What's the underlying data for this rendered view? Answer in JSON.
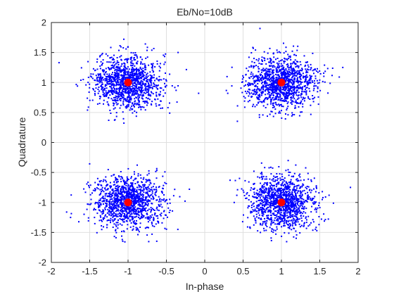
{
  "chart_data": {
    "type": "scatter",
    "title": "Eb/No=10dB",
    "xlabel": "In-phase",
    "ylabel": "Quadrature",
    "xlim": [
      -2,
      2
    ],
    "ylim": [
      -2,
      2
    ],
    "xticks": [
      -2,
      -1.5,
      -1,
      -0.5,
      0,
      0.5,
      1,
      1.5,
      2
    ],
    "yticks": [
      -2,
      -1.5,
      -1,
      -0.5,
      0,
      0.5,
      1,
      1.5,
      2
    ],
    "xtick_labels": [
      "-2",
      "-1.5",
      "-1",
      "-0.5",
      "0",
      "0.5",
      "1",
      "1.5",
      "2"
    ],
    "ytick_labels": [
      "-2",
      "-1.5",
      "-1",
      "-0.5",
      "0",
      "0.5",
      "1",
      "1.5",
      "2"
    ],
    "grid": true,
    "series": [
      {
        "role": "received-symbols",
        "color": "#0000ff",
        "marker": "dot",
        "clusters": [
          {
            "center": [
              -1,
              1
            ],
            "std": [
              0.22,
              0.22
            ],
            "points_per_cluster": 1200
          },
          {
            "center": [
              1,
              1
            ],
            "std": [
              0.22,
              0.22
            ],
            "points_per_cluster": 1200
          },
          {
            "center": [
              -1,
              -1
            ],
            "std": [
              0.22,
              0.22
            ],
            "points_per_cluster": 1200
          },
          {
            "center": [
              1,
              -1
            ],
            "std": [
              0.22,
              0.22
            ],
            "points_per_cluster": 1200
          }
        ],
        "outliers": [
          {
            "x": -1.9,
            "y": 1.33
          },
          {
            "x": 0.72,
            "y": 1.9
          },
          {
            "x": -0.08,
            "y": 0.82
          },
          {
            "x": 0.3,
            "y": 0.82
          },
          {
            "x": 1.8,
            "y": 1.25
          },
          {
            "x": -0.2,
            "y": -0.78
          },
          {
            "x": 0.33,
            "y": -0.63
          },
          {
            "x": 1.9,
            "y": -0.75
          },
          {
            "x": -1.75,
            "y": -1.25
          },
          {
            "x": -0.35,
            "y": -1.45
          }
        ]
      },
      {
        "role": "reference-constellation",
        "color": "#ff0000",
        "marker": "circle",
        "points": [
          {
            "x": -1,
            "y": 1
          },
          {
            "x": 1,
            "y": 1
          },
          {
            "x": -1,
            "y": -1
          },
          {
            "x": 1,
            "y": -1
          }
        ]
      }
    ]
  }
}
